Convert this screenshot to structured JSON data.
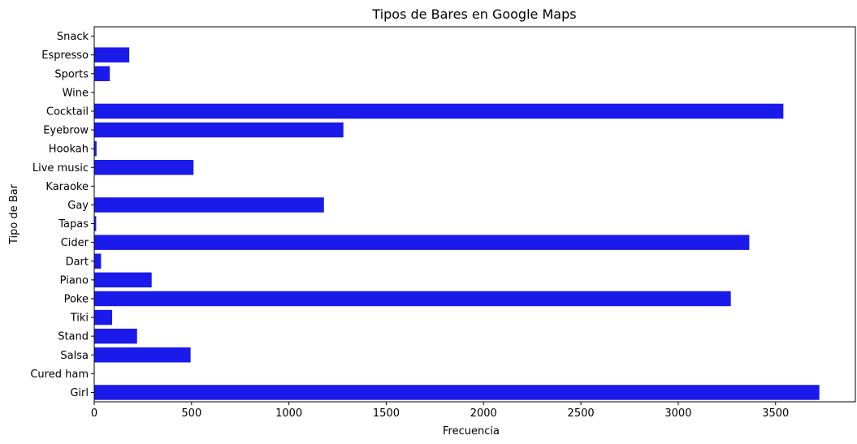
{
  "chart_data": {
    "type": "bar",
    "orientation": "horizontal",
    "title": "Tipos de Bares en Google Maps",
    "xlabel": "Frecuencia",
    "ylabel": "Tipo de Bar",
    "categories": [
      "Snack",
      "Espresso",
      "Sports",
      "Wine",
      "Cocktail",
      "Eyebrow",
      "Hookah",
      "Live music",
      "Karaoke",
      "Gay",
      "Tapas",
      "Cider",
      "Dart",
      "Piano",
      "Poke",
      "Tiki",
      "Stand",
      "Salsa",
      "Cured ham",
      "Girl"
    ],
    "values": [
      0,
      180,
      80,
      0,
      3540,
      1280,
      12,
      510,
      0,
      1180,
      10,
      3365,
      35,
      295,
      3270,
      92,
      220,
      495,
      0,
      3725
    ],
    "xlim": [
      0,
      3910
    ],
    "xticks": [
      0,
      500,
      1000,
      1500,
      2000,
      2500,
      3000,
      3500
    ],
    "bar_color": "#1a1aeb",
    "grid": false
  }
}
